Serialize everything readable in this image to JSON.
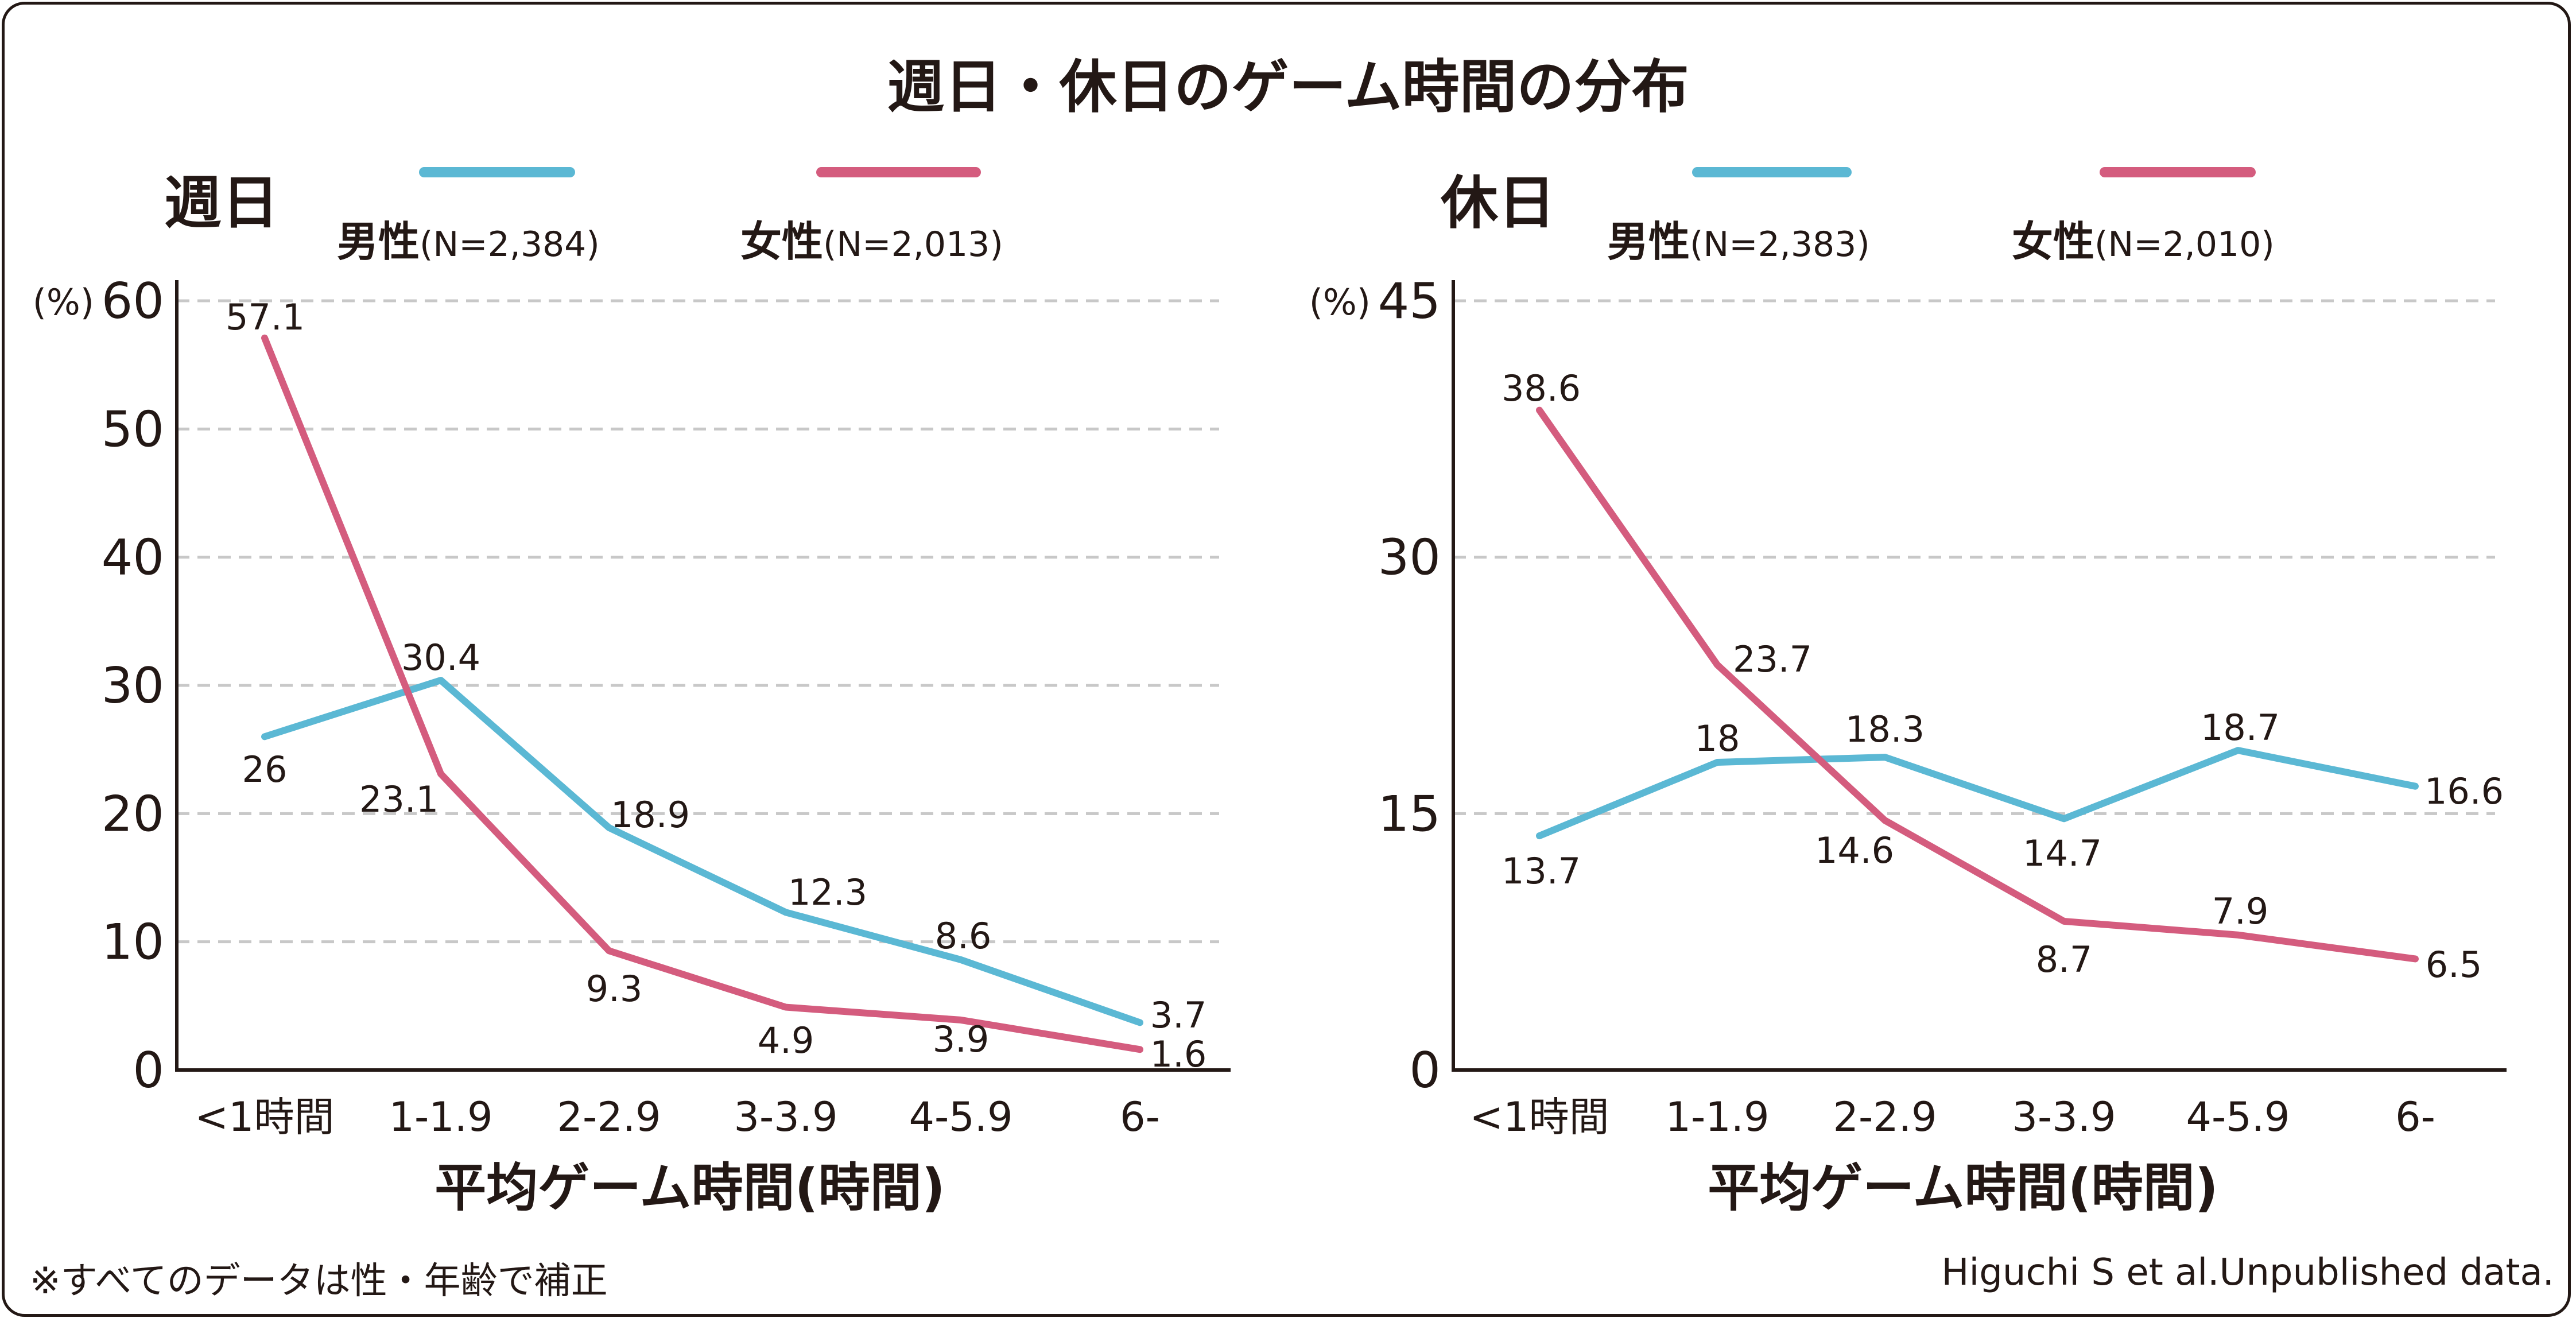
{
  "title": "週日・休日のゲーム時間の分布",
  "footer": {
    "note": "※すべてのデータは性・年齢で補正",
    "source": "Higuchi S et al.Unpublished data."
  },
  "colors": {
    "male": "#5bb8d4",
    "female": "#d45c7e"
  },
  "chart_data": [
    {
      "type": "line",
      "title": "週日",
      "categories": [
        "<1時間",
        "1-1.9",
        "2-2.9",
        "3-3.9",
        "4-5.9",
        "6-"
      ],
      "xlabel": "平均ゲーム時間(時間)",
      "ylabel": "(%)",
      "ylim": [
        0,
        60
      ],
      "yticks": [
        0,
        10,
        20,
        30,
        40,
        50,
        60
      ],
      "grid": true,
      "legend": "top",
      "series": [
        {
          "name": "男性",
          "n_label": "(N=2,384)",
          "color": "#5bb8d4",
          "values": [
            26,
            30.4,
            18.9,
            12.3,
            8.6,
            3.7
          ]
        },
        {
          "name": "女性",
          "n_label": "(N=2,013)",
          "color": "#d45c7e",
          "values": [
            57.1,
            23.1,
            9.3,
            4.9,
            3.9,
            1.6
          ]
        }
      ]
    },
    {
      "type": "line",
      "title": "休日",
      "categories": [
        "<1時間",
        "1-1.9",
        "2-2.9",
        "3-3.9",
        "4-5.9",
        "6-"
      ],
      "xlabel": "平均ゲーム時間(時間)",
      "ylabel": "(%)",
      "ylim": [
        0,
        45
      ],
      "yticks": [
        0,
        15,
        30,
        45
      ],
      "grid": true,
      "legend": "top",
      "series": [
        {
          "name": "男性",
          "n_label": "(N=2,383)",
          "color": "#5bb8d4",
          "values": [
            13.7,
            18,
            18.3,
            14.7,
            18.7,
            16.6
          ]
        },
        {
          "name": "女性",
          "n_label": "(N=2,010)",
          "color": "#d45c7e",
          "values": [
            38.6,
            23.7,
            14.6,
            8.7,
            7.9,
            6.5
          ]
        }
      ]
    }
  ]
}
